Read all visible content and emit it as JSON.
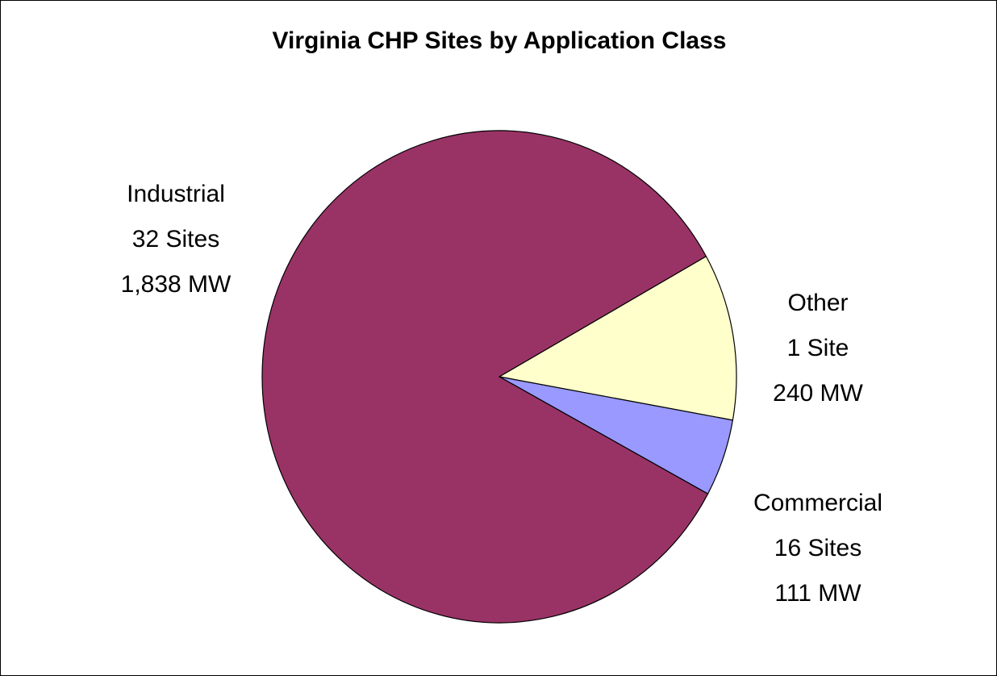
{
  "chart_data": {
    "type": "pie",
    "title": "Virginia CHP Sites by Application Class",
    "categories": [
      "Other",
      "Commercial",
      "Industrial"
    ],
    "values": [
      240,
      111,
      1838
    ],
    "value_labels": [
      "240 MW",
      "111 MW",
      "1,838 MW"
    ],
    "sites": [
      1,
      16,
      32
    ],
    "site_labels": [
      "1 Site",
      "16 Sites",
      "32 Sites"
    ],
    "colors": [
      "#ffffcc",
      "#9999ff",
      "#993366"
    ]
  }
}
